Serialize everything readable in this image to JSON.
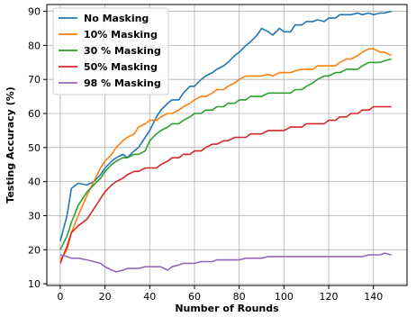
{
  "chart_data": {
    "type": "line",
    "xlabel": "Number of Rounds",
    "ylabel": "Testing Accuracy (%)",
    "xlim": [
      -6,
      155
    ],
    "ylim": [
      9.5,
      92
    ],
    "x_ticks": [
      0,
      20,
      40,
      60,
      80,
      100,
      120,
      140
    ],
    "y_ticks": [
      10,
      20,
      30,
      40,
      50,
      60,
      70,
      80,
      90
    ],
    "grid": true,
    "legend_position": "top-left",
    "series": [
      {
        "name": "No Masking",
        "color": "#1f77b4",
        "x": [
          0,
          3,
          5,
          8,
          12,
          15,
          18,
          20,
          23,
          25,
          28,
          30,
          33,
          35,
          38,
          40,
          43,
          45,
          48,
          50,
          53,
          55,
          58,
          60,
          63,
          65,
          68,
          70,
          73,
          75,
          78,
          80,
          83,
          85,
          88,
          90,
          93,
          95,
          98,
          100,
          103,
          105,
          108,
          110,
          113,
          115,
          118,
          120,
          123,
          125,
          128,
          130,
          133,
          135,
          138,
          140,
          143,
          145,
          148
        ],
        "values": [
          22.5,
          30,
          38,
          39.5,
          39,
          40,
          42,
          44,
          46,
          47,
          48,
          47,
          49,
          50,
          53,
          55,
          59,
          61,
          63,
          64,
          64,
          66,
          68,
          68,
          70,
          71,
          72,
          73,
          74,
          75,
          77,
          78,
          80,
          81,
          83,
          85,
          84,
          83,
          85,
          84,
          84,
          86,
          86,
          87,
          87,
          87.5,
          87,
          88,
          88,
          89,
          89,
          89,
          89.5,
          89,
          89.5,
          89,
          89.5,
          89.5,
          90
        ]
      },
      {
        "name": "10% Masking",
        "color": "#ff7f0e",
        "x": [
          0,
          3,
          5,
          8,
          12,
          15,
          18,
          20,
          23,
          25,
          28,
          30,
          33,
          35,
          38,
          40,
          43,
          45,
          48,
          50,
          53,
          55,
          58,
          60,
          63,
          65,
          68,
          70,
          73,
          75,
          78,
          80,
          83,
          85,
          88,
          90,
          93,
          95,
          98,
          100,
          103,
          105,
          108,
          110,
          113,
          115,
          118,
          120,
          123,
          125,
          128,
          130,
          133,
          135,
          138,
          140,
          143,
          145,
          148
        ],
        "values": [
          17,
          20,
          25,
          30,
          36,
          40,
          44,
          46,
          48,
          50,
          52,
          53,
          54,
          56,
          57,
          58,
          58,
          59,
          60,
          60,
          61,
          62,
          63,
          64,
          65,
          65,
          66,
          67,
          67,
          68,
          69,
          70,
          71,
          71,
          71,
          71,
          71.5,
          71,
          72,
          72,
          72,
          72.5,
          73,
          73,
          73,
          74,
          74,
          74,
          74,
          75,
          76,
          76,
          77,
          78,
          79,
          79,
          78,
          78,
          77
        ]
      },
      {
        "name": "30 % Masking",
        "color": "#2ca02c",
        "x": [
          0,
          3,
          5,
          8,
          12,
          15,
          18,
          20,
          23,
          25,
          28,
          30,
          33,
          35,
          38,
          40,
          43,
          45,
          48,
          50,
          53,
          55,
          58,
          60,
          63,
          65,
          68,
          70,
          73,
          75,
          78,
          80,
          83,
          85,
          88,
          90,
          93,
          95,
          98,
          100,
          103,
          105,
          108,
          110,
          113,
          115,
          118,
          120,
          123,
          125,
          128,
          130,
          133,
          135,
          138,
          140,
          143,
          145,
          148
        ],
        "values": [
          20,
          24,
          28,
          33,
          37,
          39,
          41,
          43,
          45,
          46,
          47,
          47,
          48,
          48,
          49,
          52,
          54,
          55,
          56,
          57,
          57,
          58,
          59,
          60,
          60,
          61,
          61,
          62,
          62,
          63,
          63,
          64,
          64,
          65,
          65,
          65,
          66,
          66,
          66,
          66,
          66,
          67,
          67,
          68,
          69,
          70,
          71,
          71,
          72,
          72,
          73,
          73,
          73,
          74,
          75,
          75,
          75,
          75.5,
          76
        ]
      },
      {
        "name": "50% Masking",
        "color": "#d62728",
        "x": [
          0,
          3,
          5,
          8,
          12,
          15,
          18,
          20,
          23,
          25,
          28,
          30,
          33,
          35,
          38,
          40,
          43,
          45,
          48,
          50,
          53,
          55,
          58,
          60,
          63,
          65,
          68,
          70,
          73,
          75,
          78,
          80,
          83,
          85,
          88,
          90,
          93,
          95,
          98,
          100,
          103,
          105,
          108,
          110,
          113,
          115,
          118,
          120,
          123,
          125,
          128,
          130,
          133,
          135,
          138,
          140,
          143,
          145,
          148
        ],
        "values": [
          16,
          21,
          25,
          27,
          29,
          32,
          35,
          37,
          39,
          40,
          41,
          42,
          43,
          43,
          44,
          44,
          44,
          45,
          46,
          47,
          47,
          48,
          48,
          49,
          49,
          50,
          51,
          51,
          52,
          52,
          53,
          53,
          53,
          54,
          54,
          54,
          55,
          55,
          55,
          55,
          56,
          56,
          56,
          57,
          57,
          57,
          57,
          58,
          58,
          59,
          59,
          60,
          60,
          61,
          61,
          62,
          62,
          62,
          62
        ]
      },
      {
        "name": "98 % Masking",
        "color": "#9467bd",
        "x": [
          0,
          3,
          5,
          8,
          12,
          15,
          18,
          20,
          23,
          25,
          28,
          30,
          33,
          35,
          38,
          40,
          43,
          45,
          48,
          50,
          53,
          55,
          58,
          60,
          63,
          65,
          68,
          70,
          73,
          75,
          78,
          80,
          83,
          85,
          88,
          90,
          93,
          95,
          98,
          100,
          103,
          105,
          108,
          110,
          113,
          115,
          118,
          120,
          123,
          125,
          128,
          130,
          133,
          135,
          138,
          140,
          143,
          145,
          148
        ],
        "values": [
          18.5,
          18,
          17.5,
          17.5,
          17,
          16.5,
          16,
          15,
          14,
          13.5,
          14,
          14.5,
          14.5,
          14.5,
          15,
          15,
          15,
          15,
          14,
          15,
          15.5,
          16,
          16,
          16,
          16.5,
          16.5,
          16.5,
          17,
          17,
          17,
          17,
          17,
          17.5,
          17.5,
          17.5,
          17.5,
          18,
          18,
          18,
          18,
          18,
          18,
          18,
          18,
          18,
          18,
          18,
          18,
          18,
          18,
          18,
          18,
          18,
          18,
          18.5,
          18.5,
          18.5,
          19,
          18.5
        ]
      }
    ]
  }
}
